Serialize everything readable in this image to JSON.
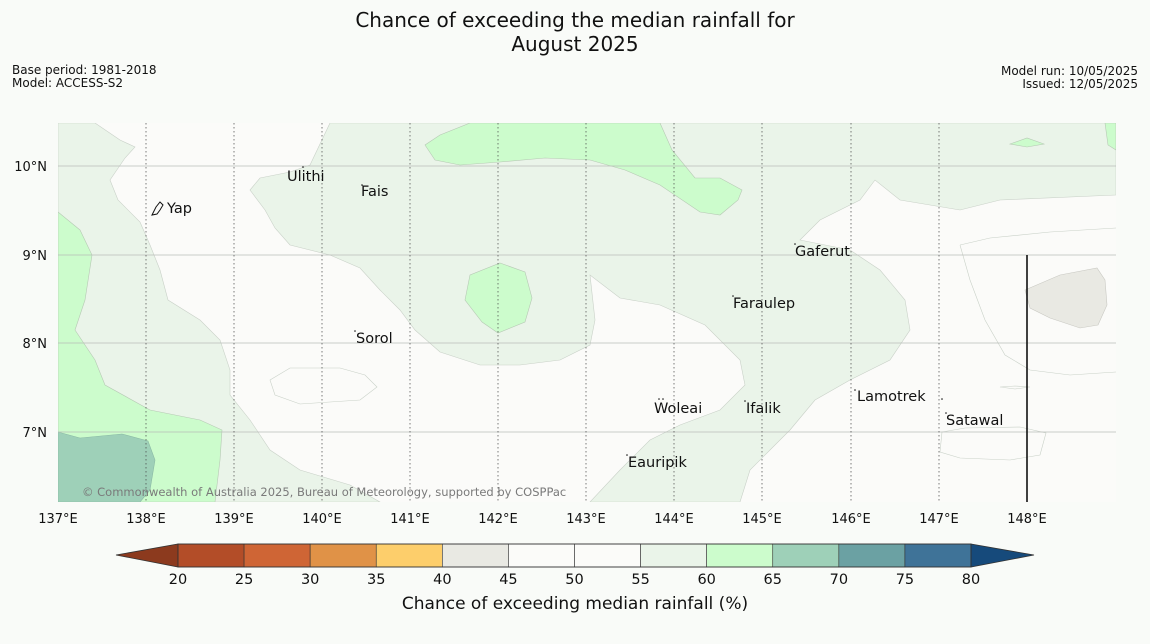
{
  "title_line1": "Chance of exceeding the median rainfall for",
  "title_line2": "August 2025",
  "meta": {
    "base_period": "Base period: 1981-2018",
    "model": "Model: ACCESS-S2",
    "model_run": "Model run: 10/05/2025",
    "issued": "Issued: 12/05/2025"
  },
  "map": {
    "lat_labels": [
      "10°N",
      "9°N",
      "8°N",
      "7°N"
    ],
    "lon_labels": [
      "137°E",
      "138°E",
      "139°E",
      "140°E",
      "141°E",
      "142°E",
      "143°E",
      "144°E",
      "145°E",
      "146°E",
      "147°E",
      "148°E"
    ],
    "places": [
      "Yap",
      "Ulithi",
      "Fais",
      "Gaferut",
      "Faraulep",
      "Sorol",
      "Woleai",
      "Ifalik",
      "Lamotrek",
      "Satawal",
      "Eauripik"
    ],
    "copyright": "© Commonwealth of Australia 2025, Bureau of Meteorology, supported by COSPPac"
  },
  "colorbar": {
    "tick_labels": [
      "20",
      "25",
      "30",
      "35",
      "40",
      "45",
      "50",
      "55",
      "60",
      "65",
      "70",
      "75",
      "80"
    ],
    "colors": [
      "#8c3a1e",
      "#b34d28",
      "#cf6535",
      "#e09247",
      "#fdce6b",
      "#e9e9e3",
      "#fbfbf9",
      "#fbfbf9",
      "#eaf4e9",
      "#ccfccc",
      "#9ed0b8",
      "#6ba1a3",
      "#3f7398",
      "#164a7b"
    ],
    "title": "Chance of exceeding median rainfall (%)"
  }
}
